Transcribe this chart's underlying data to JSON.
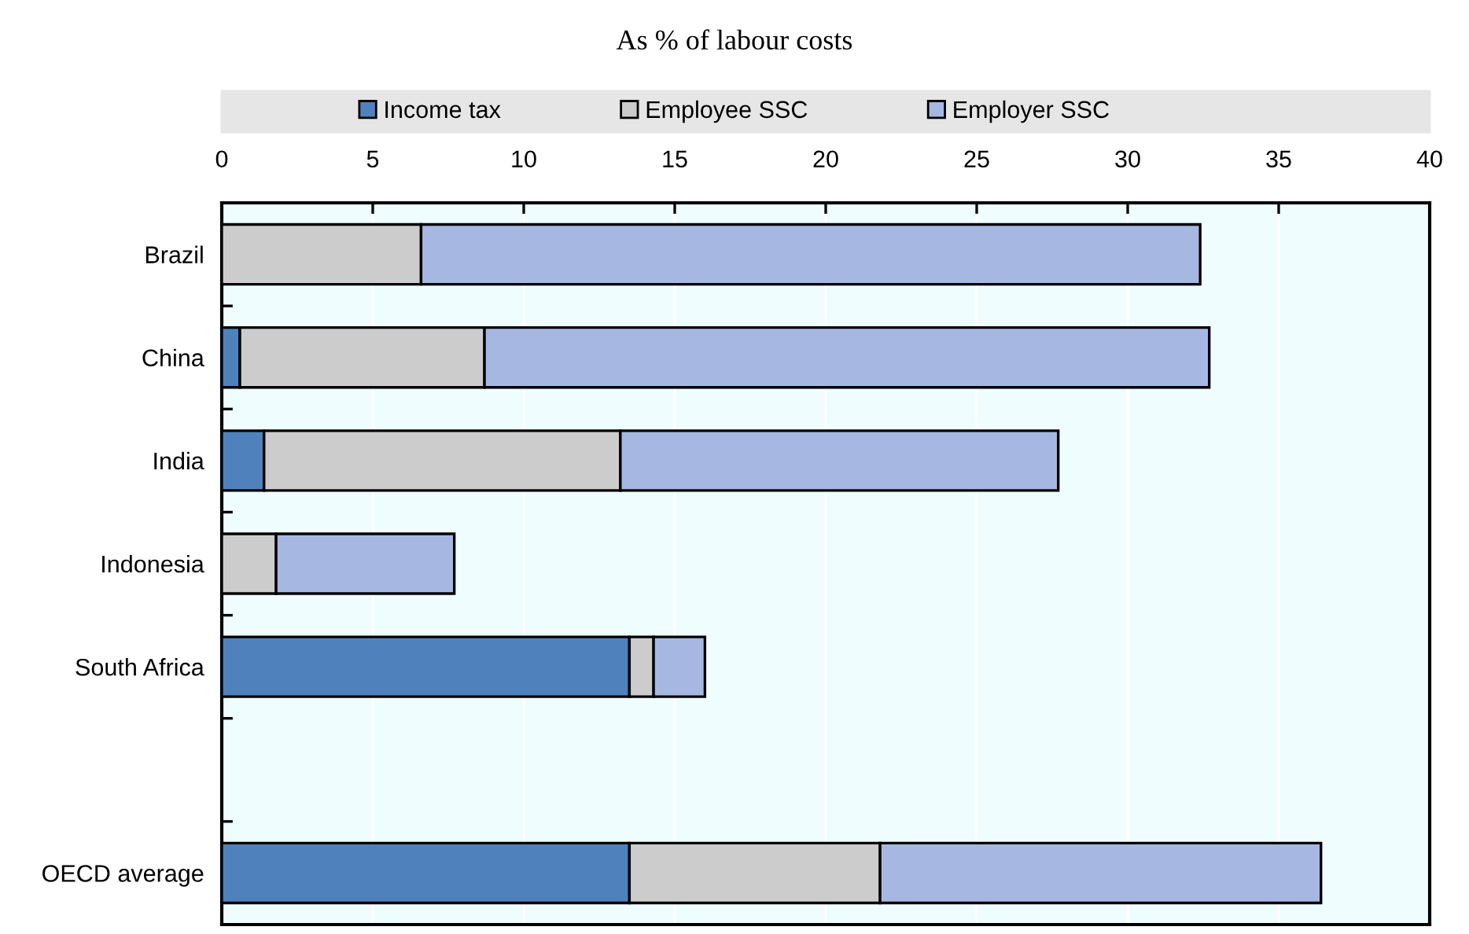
{
  "chart_data": {
    "type": "bar",
    "orientation": "horizontal",
    "stacked": true,
    "title": "As % of labour costs",
    "categories": [
      "Brazil",
      "China",
      "India",
      "Indonesia",
      "South Africa",
      null,
      "OECD average"
    ],
    "series": [
      {
        "name": "Income tax",
        "color": "#4f81bd",
        "values": [
          0,
          0.6,
          1.4,
          0,
          13.5,
          null,
          13.5
        ]
      },
      {
        "name": "Employee SSC",
        "color": "#cccccc",
        "values": [
          6.6,
          8.1,
          11.8,
          1.8,
          0.8,
          null,
          8.3
        ]
      },
      {
        "name": "Employer SSC",
        "color": "#a6b8e2",
        "values": [
          25.8,
          24.0,
          14.5,
          5.9,
          1.7,
          null,
          14.6
        ]
      }
    ],
    "xlim": [
      0,
      40
    ],
    "xticks": [
      0,
      5,
      10,
      15,
      20,
      25,
      30,
      35,
      40
    ],
    "grid": "x",
    "legend": "top"
  }
}
